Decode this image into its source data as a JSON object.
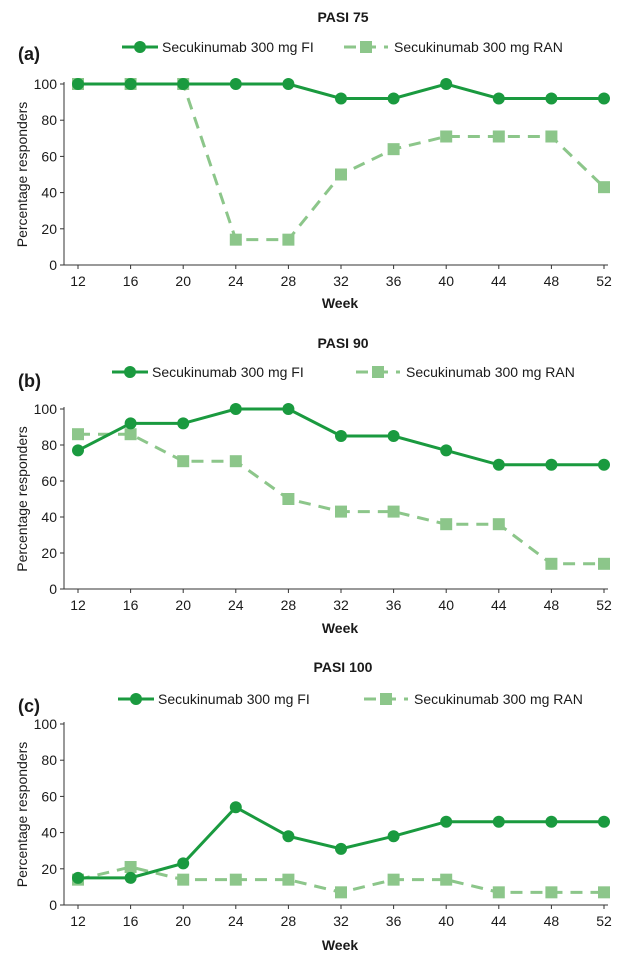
{
  "colors": {
    "fi": "#1a9a3f",
    "ran": "#8cc68a",
    "axis": "#333333",
    "text": "#1a1a1a"
  },
  "chart_data": [
    {
      "type": "line",
      "panel_label": "(a)",
      "title": "PASI 75",
      "xlabel": "Week",
      "ylabel": "Percentage responders",
      "categories": [
        "12",
        "16",
        "20",
        "24",
        "28",
        "32",
        "36",
        "40",
        "44",
        "48",
        "52"
      ],
      "yticks": [
        "0",
        "20",
        "40",
        "60",
        "80",
        "100"
      ],
      "ylim": [
        0,
        100
      ],
      "grid": false,
      "legend_position": "top",
      "series": [
        {
          "name": "Secukinumab 300 mg FI",
          "style": "solid-circle",
          "values": [
            100,
            100,
            100,
            100,
            100,
            92,
            92,
            100,
            92,
            92,
            92
          ]
        },
        {
          "name": "Secukinumab 300 mg RAN",
          "style": "dashed-square",
          "values": [
            100,
            100,
            100,
            14,
            14,
            50,
            64,
            71,
            71,
            71,
            43
          ]
        }
      ]
    },
    {
      "type": "line",
      "panel_label": "(b)",
      "title": "PASI 90",
      "xlabel": "Week",
      "ylabel": "Percentage responders",
      "categories": [
        "12",
        "16",
        "20",
        "24",
        "28",
        "32",
        "36",
        "40",
        "44",
        "48",
        "52"
      ],
      "yticks": [
        "0",
        "20",
        "40",
        "60",
        "80",
        "100"
      ],
      "ylim": [
        0,
        100
      ],
      "grid": false,
      "legend_position": "top",
      "series": [
        {
          "name": "Secukinumab 300  mg FI",
          "style": "solid-circle",
          "values": [
            77,
            92,
            92,
            100,
            100,
            85,
            85,
            77,
            69,
            69,
            69
          ]
        },
        {
          "name": "Secukinumab 300 mg RAN",
          "style": "dashed-square",
          "values": [
            86,
            86,
            71,
            71,
            50,
            43,
            43,
            36,
            36,
            14,
            14
          ]
        }
      ]
    },
    {
      "type": "line",
      "panel_label": "(c)",
      "title": "PASI 100",
      "xlabel": "Week",
      "ylabel": "Percentage responders",
      "categories": [
        "12",
        "16",
        "20",
        "24",
        "28",
        "32",
        "36",
        "40",
        "44",
        "48",
        "52"
      ],
      "yticks": [
        "0",
        "20",
        "40",
        "60",
        "80",
        "100"
      ],
      "ylim": [
        0,
        100
      ],
      "grid": false,
      "legend_position": "top",
      "series": [
        {
          "name": "Secukinumab 300 mg FI",
          "style": "solid-circle",
          "values": [
            15,
            15,
            23,
            54,
            38,
            31,
            38,
            46,
            46,
            46,
            46
          ]
        },
        {
          "name": "Secukinumab 300 mg RAN",
          "style": "dashed-square",
          "values": [
            14,
            21,
            14,
            14,
            14,
            7,
            14,
            14,
            7,
            7,
            7
          ]
        }
      ]
    }
  ]
}
